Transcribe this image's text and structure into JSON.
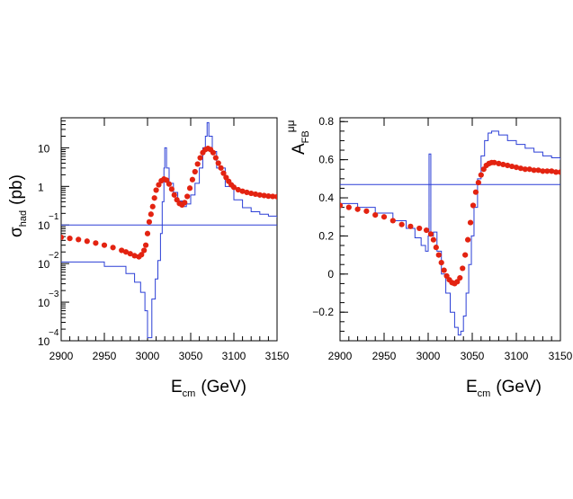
{
  "chart_data": [
    {
      "type": "line",
      "yscale": "log",
      "title": "",
      "xlabel": {
        "main": "E",
        "sub": "cm",
        "unit": "(GeV)"
      },
      "ylabel": {
        "main": "σ",
        "sub": "had",
        "unit": "(pb)"
      },
      "xlim": [
        2900,
        3150
      ],
      "ylim": [
        0.0001,
        60
      ],
      "xticks": [
        2900,
        2950,
        3000,
        3050,
        3100,
        3150
      ],
      "yticks": [
        {
          "value": 10,
          "base": "10",
          "exp": ""
        },
        {
          "value": 1,
          "base": "1",
          "exp": ""
        },
        {
          "value": 0.1,
          "base": "10",
          "exp": "−1"
        },
        {
          "value": 0.01,
          "base": "10",
          "exp": "−2"
        },
        {
          "value": 0.001,
          "base": "10",
          "exp": "−3"
        },
        {
          "value": 0.0001,
          "base": "10",
          "exp": "−4"
        }
      ],
      "series": [
        {
          "name": "histogram (blue)",
          "style": "step",
          "color": "#2b3fd6",
          "points": [
            [
              2900,
              0.011
            ],
            [
              2950,
              0.0085
            ],
            [
              2975,
              0.0055
            ],
            [
              2985,
              0.0033
            ],
            [
              2992,
              0.0018
            ],
            [
              2997,
              0.0006
            ],
            [
              3000,
              0.00012
            ],
            [
              3003,
              0.00012
            ],
            [
              3005,
              0.0012
            ],
            [
              3009,
              0.004
            ],
            [
              3012,
              0.012
            ],
            [
              3015,
              0.06
            ],
            [
              3017,
              0.4
            ],
            [
              3019,
              3
            ],
            [
              3020,
              10
            ],
            [
              3022,
              3
            ],
            [
              3025,
              1.2
            ],
            [
              3030,
              0.7
            ],
            [
              3035,
              0.42
            ],
            [
              3040,
              0.3
            ],
            [
              3045,
              0.35
            ],
            [
              3050,
              0.6
            ],
            [
              3055,
              1.2
            ],
            [
              3060,
              3
            ],
            [
              3064,
              10
            ],
            [
              3067,
              20
            ],
            [
              3069,
              45
            ],
            [
              3071,
              20
            ],
            [
              3075,
              8
            ],
            [
              3080,
              3
            ],
            [
              3090,
              1
            ],
            [
              3100,
              0.45
            ],
            [
              3110,
              0.28
            ],
            [
              3120,
              0.22
            ],
            [
              3130,
              0.19
            ],
            [
              3140,
              0.17
            ],
            [
              3150,
              0.16
            ]
          ]
        },
        {
          "name": "reference line (blue)",
          "style": "line",
          "color": "#2b3fd6",
          "points": [
            [
              2900,
              0.1
            ],
            [
              3150,
              0.1
            ]
          ]
        },
        {
          "name": "points (red)",
          "style": "marker",
          "color": "#e32311",
          "points": [
            [
              2900,
              0.048
            ],
            [
              2910,
              0.045
            ],
            [
              2920,
              0.042
            ],
            [
              2930,
              0.038
            ],
            [
              2940,
              0.034
            ],
            [
              2950,
              0.03
            ],
            [
              2960,
              0.026
            ],
            [
              2970,
              0.022
            ],
            [
              2975,
              0.02
            ],
            [
              2980,
              0.018
            ],
            [
              2985,
              0.016
            ],
            [
              2990,
              0.015
            ],
            [
              2993,
              0.017
            ],
            [
              2996,
              0.022
            ],
            [
              2998,
              0.03
            ],
            [
              3000,
              0.06
            ],
            [
              3002,
              0.12
            ],
            [
              3004,
              0.19
            ],
            [
              3006,
              0.3
            ],
            [
              3008,
              0.5
            ],
            [
              3010,
              0.8
            ],
            [
              3013,
              1.1
            ],
            [
              3016,
              1.4
            ],
            [
              3019,
              1.55
            ],
            [
              3022,
              1.45
            ],
            [
              3025,
              1.15
            ],
            [
              3028,
              0.85
            ],
            [
              3031,
              0.6
            ],
            [
              3034,
              0.45
            ],
            [
              3037,
              0.36
            ],
            [
              3040,
              0.33
            ],
            [
              3043,
              0.38
            ],
            [
              3046,
              0.55
            ],
            [
              3049,
              0.9
            ],
            [
              3052,
              1.5
            ],
            [
              3055,
              2.4
            ],
            [
              3058,
              3.8
            ],
            [
              3061,
              5.5
            ],
            [
              3064,
              7.5
            ],
            [
              3067,
              9
            ],
            [
              3070,
              9.6
            ],
            [
              3073,
              9
            ],
            [
              3076,
              7.5
            ],
            [
              3079,
              5.5
            ],
            [
              3082,
              4
            ],
            [
              3085,
              3
            ],
            [
              3088,
              2.2
            ],
            [
              3091,
              1.7
            ],
            [
              3094,
              1.35
            ],
            [
              3097,
              1.1
            ],
            [
              3100,
              0.95
            ],
            [
              3105,
              0.82
            ],
            [
              3110,
              0.75
            ],
            [
              3115,
              0.7
            ],
            [
              3120,
              0.66
            ],
            [
              3125,
              0.63
            ],
            [
              3130,
              0.6
            ],
            [
              3135,
              0.58
            ],
            [
              3140,
              0.56
            ],
            [
              3145,
              0.55
            ],
            [
              3150,
              0.54
            ]
          ]
        }
      ]
    },
    {
      "type": "line",
      "yscale": "linear",
      "title": "",
      "xlabel": {
        "main": "E",
        "sub": "cm",
        "unit": "(GeV)"
      },
      "ylabel": {
        "main": "A",
        "sub": "FB",
        "sup": "μμ"
      },
      "xlim": [
        2900,
        3150
      ],
      "ylim": [
        -0.35,
        0.82
      ],
      "xticks": [
        2900,
        2950,
        3000,
        3050,
        3100,
        3150
      ],
      "yticks": [
        {
          "value": 0.8,
          "label": "0.8"
        },
        {
          "value": 0.6,
          "label": "0.6"
        },
        {
          "value": 0.4,
          "label": "0.4"
        },
        {
          "value": 0.2,
          "label": "0.2"
        },
        {
          "value": 0,
          "label": "0"
        },
        {
          "value": -0.2,
          "label": "−0.2"
        }
      ],
      "series": [
        {
          "name": "histogram (blue)",
          "style": "step",
          "color": "#2b3fd6",
          "points": [
            [
              2900,
              0.37
            ],
            [
              2920,
              0.35
            ],
            [
              2940,
              0.32
            ],
            [
              2960,
              0.28
            ],
            [
              2975,
              0.24
            ],
            [
              2985,
              0.19
            ],
            [
              2992,
              0.15
            ],
            [
              2997,
              0.12
            ],
            [
              3000,
              0.2
            ],
            [
              3001,
              0.63
            ],
            [
              3003,
              0.2
            ],
            [
              3006,
              0.22
            ],
            [
              3010,
              0.12
            ],
            [
              3015,
              0.0
            ],
            [
              3020,
              -0.1
            ],
            [
              3025,
              -0.2
            ],
            [
              3030,
              -0.28
            ],
            [
              3034,
              -0.32
            ],
            [
              3037,
              -0.3
            ],
            [
              3040,
              -0.22
            ],
            [
              3043,
              -0.1
            ],
            [
              3046,
              0.05
            ],
            [
              3049,
              0.2
            ],
            [
              3052,
              0.35
            ],
            [
              3056,
              0.5
            ],
            [
              3060,
              0.62
            ],
            [
              3064,
              0.7
            ],
            [
              3068,
              0.74
            ],
            [
              3072,
              0.75
            ],
            [
              3080,
              0.73
            ],
            [
              3090,
              0.7
            ],
            [
              3100,
              0.68
            ],
            [
              3110,
              0.66
            ],
            [
              3120,
              0.64
            ],
            [
              3130,
              0.62
            ],
            [
              3140,
              0.61
            ],
            [
              3150,
              0.6
            ]
          ]
        },
        {
          "name": "reference line (blue)",
          "style": "line",
          "color": "#2b3fd6",
          "points": [
            [
              2900,
              0.47
            ],
            [
              3150,
              0.47
            ]
          ]
        },
        {
          "name": "points (red)",
          "style": "marker",
          "color": "#e32311",
          "points": [
            [
              2900,
              0.36
            ],
            [
              2910,
              0.35
            ],
            [
              2920,
              0.34
            ],
            [
              2930,
              0.33
            ],
            [
              2940,
              0.31
            ],
            [
              2950,
              0.3
            ],
            [
              2960,
              0.28
            ],
            [
              2970,
              0.26
            ],
            [
              2980,
              0.25
            ],
            [
              2990,
              0.24
            ],
            [
              2998,
              0.23
            ],
            [
              3003,
              0.21
            ],
            [
              3006,
              0.18
            ],
            [
              3009,
              0.14
            ],
            [
              3012,
              0.1
            ],
            [
              3015,
              0.06
            ],
            [
              3018,
              0.02
            ],
            [
              3021,
              -0.01
            ],
            [
              3024,
              -0.03
            ],
            [
              3027,
              -0.045
            ],
            [
              3030,
              -0.05
            ],
            [
              3033,
              -0.04
            ],
            [
              3036,
              -0.02
            ],
            [
              3039,
              0.03
            ],
            [
              3042,
              0.1
            ],
            [
              3045,
              0.18
            ],
            [
              3048,
              0.27
            ],
            [
              3051,
              0.36
            ],
            [
              3054,
              0.43
            ],
            [
              3057,
              0.48
            ],
            [
              3060,
              0.52
            ],
            [
              3063,
              0.55
            ],
            [
              3066,
              0.57
            ],
            [
              3069,
              0.58
            ],
            [
              3072,
              0.585
            ],
            [
              3075,
              0.585
            ],
            [
              3080,
              0.58
            ],
            [
              3085,
              0.575
            ],
            [
              3090,
              0.57
            ],
            [
              3095,
              0.565
            ],
            [
              3100,
              0.56
            ],
            [
              3105,
              0.555
            ],
            [
              3110,
              0.55
            ],
            [
              3115,
              0.55
            ],
            [
              3120,
              0.545
            ],
            [
              3125,
              0.545
            ],
            [
              3130,
              0.54
            ],
            [
              3135,
              0.54
            ],
            [
              3140,
              0.54
            ],
            [
              3145,
              0.535
            ],
            [
              3150,
              0.535
            ]
          ]
        }
      ]
    }
  ]
}
